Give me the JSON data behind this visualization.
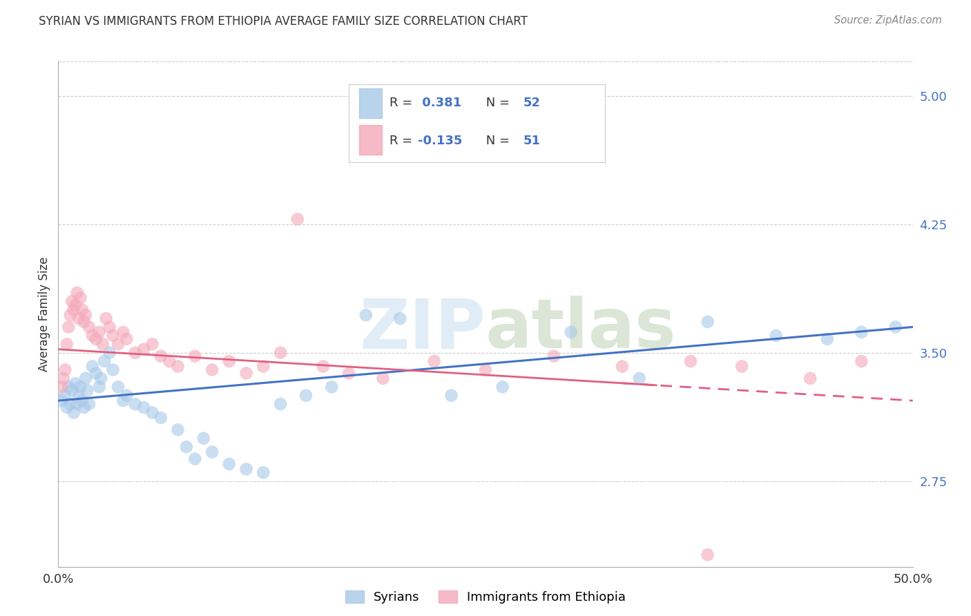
{
  "title": "SYRIAN VS IMMIGRANTS FROM ETHIOPIA AVERAGE FAMILY SIZE CORRELATION CHART",
  "source": "Source: ZipAtlas.com",
  "ylabel": "Average Family Size",
  "yticks": [
    2.75,
    3.5,
    4.25,
    5.0
  ],
  "xlim": [
    0.0,
    0.5
  ],
  "ylim": [
    2.25,
    5.2
  ],
  "legend_syrians": "Syrians",
  "legend_ethiopia": "Immigrants from Ethiopia",
  "r_syrians": 0.381,
  "n_syrians": 52,
  "r_ethiopia": -0.135,
  "n_ethiopia": 51,
  "color_syrians": "#a8c8e8",
  "color_ethiopia": "#f4a8b8",
  "color_line_syrians": "#4472c4",
  "color_line_ethiopia": "#e06080",
  "watermark_color": "#c8dff0",
  "syrians_x": [
    0.002,
    0.004,
    0.005,
    0.006,
    0.007,
    0.008,
    0.009,
    0.01,
    0.011,
    0.012,
    0.013,
    0.014,
    0.015,
    0.016,
    0.017,
    0.018,
    0.02,
    0.022,
    0.024,
    0.025,
    0.027,
    0.03,
    0.032,
    0.035,
    0.038,
    0.04,
    0.045,
    0.05,
    0.055,
    0.06,
    0.07,
    0.075,
    0.08,
    0.085,
    0.09,
    0.1,
    0.11,
    0.12,
    0.13,
    0.145,
    0.16,
    0.18,
    0.2,
    0.23,
    0.26,
    0.3,
    0.34,
    0.38,
    0.42,
    0.45,
    0.47,
    0.49
  ],
  "syrians_y": [
    3.22,
    3.25,
    3.18,
    3.3,
    3.2,
    3.28,
    3.15,
    3.32,
    3.2,
    3.25,
    3.3,
    3.22,
    3.18,
    3.35,
    3.28,
    3.2,
    3.42,
    3.38,
    3.3,
    3.35,
    3.45,
    3.5,
    3.4,
    3.3,
    3.22,
    3.25,
    3.2,
    3.18,
    3.15,
    3.12,
    3.05,
    2.95,
    2.88,
    3.0,
    2.92,
    2.85,
    2.82,
    2.8,
    3.2,
    3.25,
    3.3,
    3.72,
    3.7,
    3.25,
    3.3,
    3.62,
    3.35,
    3.68,
    3.6,
    3.58,
    3.62,
    3.65
  ],
  "ethiopia_x": [
    0.002,
    0.003,
    0.004,
    0.005,
    0.006,
    0.007,
    0.008,
    0.009,
    0.01,
    0.011,
    0.012,
    0.013,
    0.014,
    0.015,
    0.016,
    0.018,
    0.02,
    0.022,
    0.024,
    0.026,
    0.028,
    0.03,
    0.032,
    0.035,
    0.038,
    0.04,
    0.045,
    0.05,
    0.055,
    0.06,
    0.065,
    0.07,
    0.08,
    0.09,
    0.1,
    0.11,
    0.12,
    0.13,
    0.14,
    0.155,
    0.17,
    0.19,
    0.22,
    0.25,
    0.29,
    0.33,
    0.37,
    0.4,
    0.44,
    0.47,
    0.38
  ],
  "ethiopia_y": [
    3.3,
    3.35,
    3.4,
    3.55,
    3.65,
    3.72,
    3.8,
    3.75,
    3.78,
    3.85,
    3.7,
    3.82,
    3.75,
    3.68,
    3.72,
    3.65,
    3.6,
    3.58,
    3.62,
    3.55,
    3.7,
    3.65,
    3.6,
    3.55,
    3.62,
    3.58,
    3.5,
    3.52,
    3.55,
    3.48,
    3.45,
    3.42,
    3.48,
    3.4,
    3.45,
    3.38,
    3.42,
    3.5,
    4.28,
    3.42,
    3.38,
    3.35,
    3.45,
    3.4,
    3.48,
    3.42,
    3.45,
    3.42,
    3.35,
    3.45,
    2.32
  ]
}
